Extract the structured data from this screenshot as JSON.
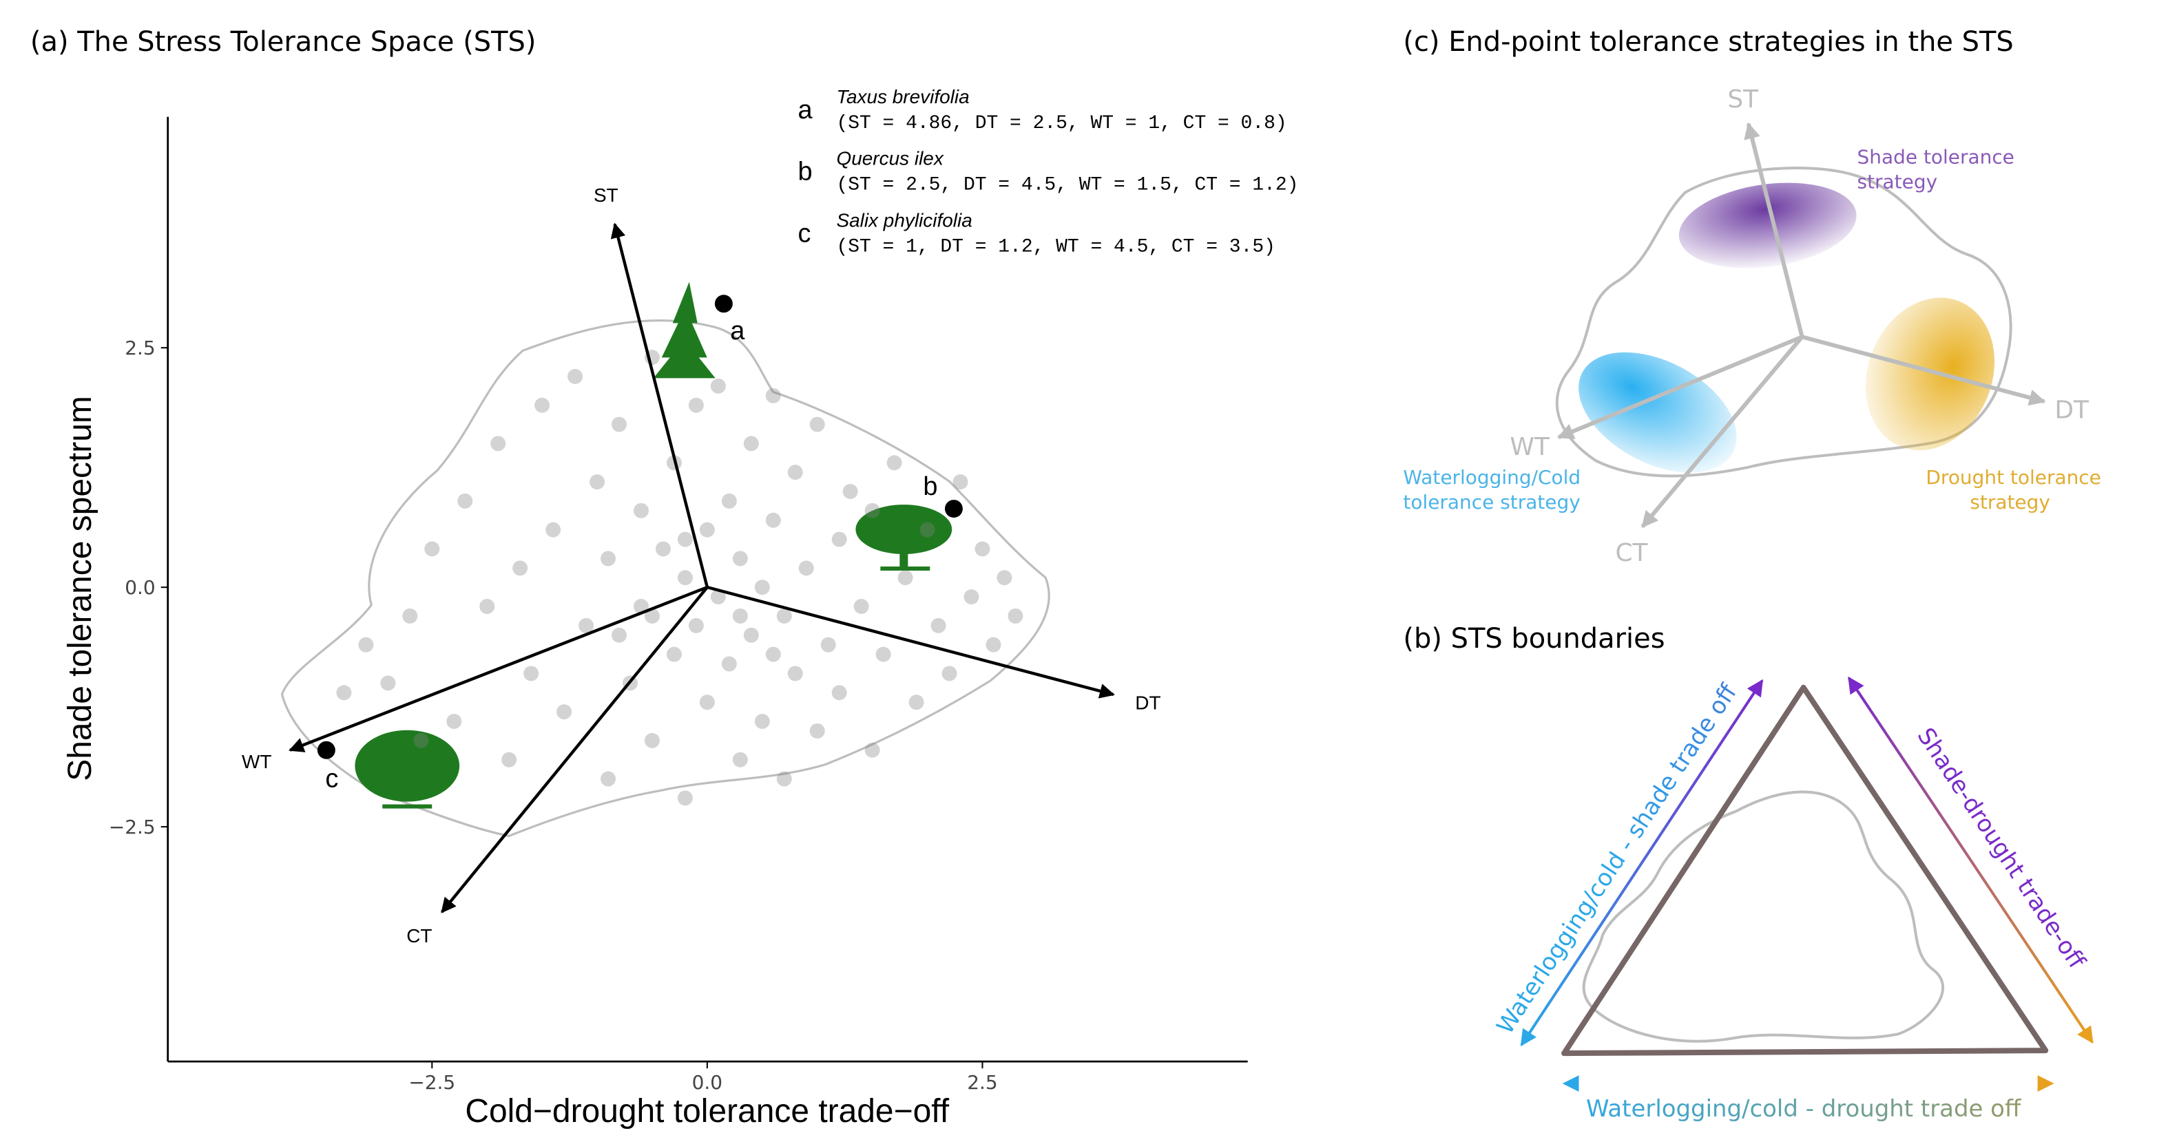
{
  "chart_data": {
    "type": "biplot",
    "title": "(a)  The Stress Tolerance Space (STS)",
    "xlabel": "Cold−drought tolerance trade−off",
    "ylabel": "Shade tolerance spectrum",
    "xlim": [
      -4.9,
      4.91
    ],
    "ylim": [
      -4.95,
      4.91
    ],
    "xticks": [
      {
        "value": -2.5,
        "label": "−2.5"
      },
      {
        "value": 0,
        "label": "0.0"
      },
      2.5
    ],
    "yticks": [
      2.5,
      {
        "value": 0,
        "label": "0.0"
      },
      {
        "value": -2.5,
        "label": "−2.5"
      }
    ],
    "point_color": "#808080",
    "x": [
      -3.1,
      -2.9,
      -2.7,
      -2.5,
      -2.3,
      -2.2,
      -2.0,
      -1.9,
      -1.8,
      -1.7,
      -1.6,
      -1.5,
      -1.4,
      -1.3,
      -1.2,
      -1.1,
      -1.0,
      -0.9,
      -0.9,
      -0.8,
      -0.7,
      -0.6,
      -0.6,
      -0.5,
      -0.5,
      -0.4,
      -0.3,
      -0.3,
      -0.2,
      -0.2,
      -0.1,
      -0.1,
      0.0,
      0.0,
      0.1,
      0.1,
      0.2,
      0.2,
      0.3,
      0.3,
      0.4,
      0.4,
      0.5,
      0.5,
      0.6,
      0.6,
      0.7,
      0.7,
      0.8,
      0.8,
      0.9,
      1.0,
      1.0,
      1.1,
      1.2,
      1.2,
      1.3,
      1.4,
      1.5,
      1.5,
      1.6,
      1.7,
      1.8,
      1.9,
      2.0,
      2.1,
      2.2,
      2.3,
      2.4,
      2.5,
      2.6,
      2.7,
      2.8,
      -2.6,
      -3.3,
      -0.5,
      0.3,
      -0.2,
      0.6,
      -0.8
    ],
    "y": [
      -0.6,
      -1.0,
      -0.3,
      0.4,
      -1.4,
      0.9,
      -0.2,
      1.5,
      -1.8,
      0.2,
      -0.9,
      1.9,
      0.6,
      -1.3,
      2.2,
      -0.4,
      1.1,
      -2.0,
      0.3,
      1.7,
      -1.0,
      0.8,
      -0.2,
      2.4,
      -1.6,
      0.4,
      1.3,
      -0.7,
      -2.2,
      0.1,
      1.9,
      -0.4,
      0.6,
      -1.2,
      2.1,
      -0.1,
      0.9,
      -0.8,
      -1.8,
      0.3,
      1.5,
      -0.5,
      0.0,
      -1.4,
      0.7,
      2.0,
      -0.3,
      -2.0,
      1.2,
      -0.9,
      0.2,
      -1.5,
      1.7,
      -0.6,
      0.5,
      -1.1,
      1.0,
      -0.2,
      -1.7,
      0.8,
      -0.7,
      1.3,
      0.1,
      -1.2,
      0.6,
      -0.4,
      -0.9,
      1.1,
      -0.1,
      0.4,
      -0.6,
      0.1,
      -0.3,
      -1.6,
      -1.1,
      -0.3,
      -0.3,
      0.5,
      -0.7,
      -0.5
    ],
    "vectors": [
      {
        "name": "ST",
        "x": -0.84,
        "y": 3.79
      },
      {
        "name": "DT",
        "x": 3.69,
        "y": -1.12
      },
      {
        "name": "WT",
        "x": -3.79,
        "y": -1.7
      },
      {
        "name": "CT",
        "x": -2.41,
        "y": -3.39
      }
    ],
    "species": [
      {
        "label": "a",
        "name": "Taxus brevifolia",
        "traits": "(ST = 4.86, DT = 2.5, WT = 1, CT = 0.8)",
        "x": 0.15,
        "y": 2.96
      },
      {
        "label": "b",
        "name": "Quercus ilex",
        "traits": "(ST = 2.5, DT = 4.5, WT = 1.5, CT = 1.2)",
        "x": 2.24,
        "y": 0.82
      },
      {
        "label": "c",
        "name": "Salix phylicifolia",
        "traits": "(ST = 1, DT = 1.2, WT = 4.5, CT = 3.5)",
        "x": -3.46,
        "y": -1.7
      }
    ]
  },
  "panel_c": {
    "title": "(c) End-point tolerance strategies in the STS",
    "axes": [
      "ST",
      "DT",
      "WT",
      "CT"
    ],
    "shade": [
      "Shade tolerance",
      "strategy"
    ],
    "water": [
      "Waterlogging/Cold",
      "tolerance strategy"
    ],
    "drought": [
      "Drought tolerance",
      "strategy"
    ]
  },
  "panel_b": {
    "title": "(b) STS boundaries",
    "left": "Waterlogging/cold - shade trade off",
    "right": "Shade-drought trade-off",
    "bottom": "Waterlogging/cold - drought trade off"
  }
}
